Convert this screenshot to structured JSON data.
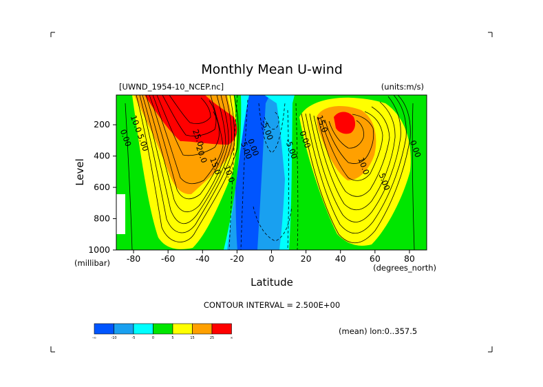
{
  "chart_data": {
    "type": "heatmap",
    "title": "Monthly Mean U-wind",
    "source_label": "[UWND_1954-10_NCEP.nc]",
    "units_label": "(units:m/s)",
    "xlabel": "Latitude",
    "ylabel": "Level",
    "x_units": "(degrees_north)",
    "y_units": "(millibar)",
    "xlim": [
      -90,
      90
    ],
    "ylim": [
      1000,
      10
    ],
    "x_ticks": [
      "-80",
      "-60",
      "-40",
      "-20",
      "0",
      "20",
      "40",
      "60",
      "80"
    ],
    "y_ticks": [
      "200",
      "400",
      "600",
      "800",
      "1000"
    ],
    "contour_interval_label": "CONTOUR INTERVAL = 2.500E+00",
    "contour_interval": 2.5,
    "mean_label": "(mean) lon:0..357.5",
    "contour_labels": [
      {
        "text": "10.0",
        "x": -80,
        "y": 200
      },
      {
        "text": "5.00",
        "x": -76,
        "y": 320
      },
      {
        "text": "0.00",
        "x": -86,
        "y": 290
      },
      {
        "text": "25.0",
        "x": -44,
        "y": 290
      },
      {
        "text": "20.0",
        "x": -42,
        "y": 395
      },
      {
        "text": "15.0",
        "x": -34,
        "y": 470
      },
      {
        "text": "10.0",
        "x": -26,
        "y": 520
      },
      {
        "text": "5.00",
        "x": -16,
        "y": 370
      },
      {
        "text": "0.00",
        "x": -12,
        "y": 350
      },
      {
        "text": "-5.00",
        "x": -4,
        "y": 240
      },
      {
        "text": "-5.00",
        "x": 10,
        "y": 360
      },
      {
        "text": "0.00",
        "x": 18,
        "y": 300
      },
      {
        "text": "15.0",
        "x": 28,
        "y": 200
      },
      {
        "text": "10.0",
        "x": 52,
        "y": 470
      },
      {
        "text": "5.00",
        "x": 64,
        "y": 570
      },
      {
        "text": "0.00",
        "x": 82,
        "y": 360
      }
    ],
    "colorbar": {
      "colors": [
        "#0055ff",
        "#19a0f0",
        "#00ffff",
        "#00e600",
        "#ffff00",
        "#ffa000",
        "#ff0000"
      ],
      "tick_labels": [
        "-∞",
        "-10",
        "-5",
        "0",
        "5",
        "15",
        "25",
        "∞"
      ]
    },
    "fill_bins": [
      {
        "range": "< -10",
        "color": "#0055ff"
      },
      {
        "range": "-10 to -5",
        "color": "#19a0f0"
      },
      {
        "range": "-5 to 0",
        "color": "#00ffff"
      },
      {
        "range": "0 to 5",
        "color": "#00e600"
      },
      {
        "range": "5 to 15",
        "color": "#ffff00"
      },
      {
        "range": "15 to 25",
        "color": "#ffa000"
      },
      {
        "range": "> 25",
        "color": "#ff0000"
      }
    ]
  }
}
